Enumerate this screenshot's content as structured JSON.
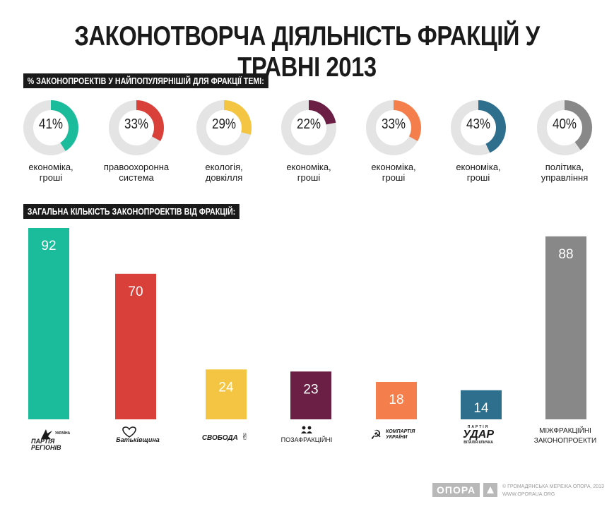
{
  "title": "ЗАКОНОТВОРЧА ДІЯЛЬНІСТЬ ФРАКЦІЙ У ТРАВНІ 2013",
  "section1_label": "% ЗАКОНОПРОЕКТІВ У НАЙПОПУЛЯРНІШІЙ ДЛЯ ФРАКЦІЇ ТЕМІ:",
  "section2_label": "ЗАГАЛЬНА КІЛЬКІСТЬ ЗАКОНОПРОЕКТІВ ВІД ФРАКЦІЙ:",
  "donuts": [
    {
      "pct": "41%",
      "value": 41,
      "color": "#1abc9c",
      "caption1": "економіка,",
      "caption2": "гроші"
    },
    {
      "pct": "33%",
      "value": 33,
      "color": "#d9403a",
      "caption1": "правоохоронна",
      "caption2": "система"
    },
    {
      "pct": "29%",
      "value": 29,
      "color": "#f4c542",
      "caption1": "екологія,",
      "caption2": "довкілля"
    },
    {
      "pct": "22%",
      "value": 22,
      "color": "#6b1f45",
      "caption1": "економіка,",
      "caption2": "гроші"
    },
    {
      "pct": "33%",
      "value": 33,
      "color": "#f47f4c",
      "caption1": "економіка,",
      "caption2": "гроші"
    },
    {
      "pct": "43%",
      "value": 43,
      "color": "#2e6f8e",
      "caption1": "економіка,",
      "caption2": "гроші"
    },
    {
      "pct": "40%",
      "value": 40,
      "color": "#888888",
      "caption1": "політика,",
      "caption2": "управління"
    }
  ],
  "chart_data": {
    "type": "bar",
    "categories": [
      "ПАРТІЯ РЕГІОНІВ",
      "Батьківщина",
      "СВОБОДА",
      "ПОЗАФРАКЦІЙНІ",
      "КОМПАРТІЯ УКРАЇНИ",
      "УДАР",
      "МІЖФРАКЦІЙНІ ЗАКОНОПРОЕКТИ"
    ],
    "values": [
      92,
      70,
      24,
      23,
      18,
      14,
      88
    ],
    "colors": [
      "#1abc9c",
      "#d9403a",
      "#f4c542",
      "#6b1f45",
      "#f47f4c",
      "#2e6f8e",
      "#888888"
    ],
    "value_labels": [
      "92",
      "70",
      "24",
      "23",
      "18",
      "14",
      "88"
    ],
    "ylim": [
      0,
      92
    ]
  },
  "logos": {
    "regions_line1": "ПАРТІЯ",
    "regions_line2": "РЕГІОНІВ",
    "regions_small": "УКРАЇНА",
    "batkivshchyna": "Батьківщина",
    "svoboda": "СВОБОДА",
    "pozafraktsiyni": "ПОЗАФРАКЦІЙНІ",
    "kpu_line1": "КОМПАРТІЯ",
    "kpu_line2": "УКРАЇНИ",
    "udar_top": "ПАРТІЯ",
    "udar_main": "УДАР",
    "udar_bottom": "ВІТАЛІЯ КЛИЧКА",
    "mizhfr_line1": "МІЖФРАКЦІЙНІ",
    "mizhfr_line2": "ЗАКОНОПРОЕКТИ"
  },
  "footer": {
    "badge": "ОПОРА",
    "copyright": "© ГРОМАДЯНСЬКА МЕРЕЖА ОПОРА, 2013",
    "url": "WWW.OPORAUA.ORG"
  }
}
